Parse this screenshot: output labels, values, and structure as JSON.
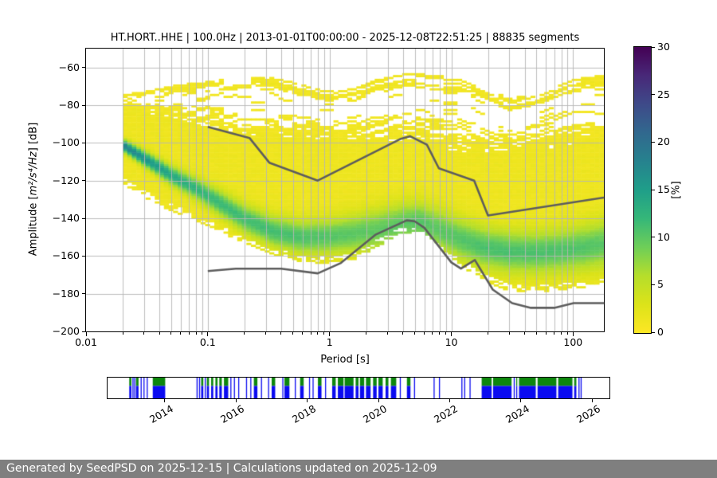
{
  "title": "HT.HORT..HHE | 100.0Hz | 2013-01-01T00:00:00 - 2025-12-08T22:51:25 | 88835 segments",
  "footer": {
    "text": "Generated by SeedPSD on 2025-12-15 | Calculations updated on 2025-12-09"
  },
  "main_plot": {
    "xlabel": "Period [s]",
    "ylabel_prefix": "Amplitude [",
    "ylabel_math": "m²/s⁴/Hz",
    "ylabel_suffix": "] [dB]"
  },
  "colorbar": {
    "label": "[%]",
    "ticks": [
      0,
      5,
      10,
      15,
      20,
      25,
      30
    ],
    "max": 30
  },
  "colors": {
    "grid": "#b5b5b5",
    "noise_model_line": "#5d5d5d",
    "footer_bg": "#7f7f7f",
    "timeline_green": "#0d870d",
    "timeline_blue": "#0b0bf0",
    "viridis_stops": [
      "#440154",
      "#482878",
      "#3e4a89",
      "#31688e",
      "#26828e",
      "#1f9e89",
      "#35b779",
      "#6ece58",
      "#b5de2b",
      "#dce319",
      "#fde725"
    ]
  },
  "chart_data": {
    "type": "heatmap",
    "title": "HT.HORT..HHE | 100.0Hz | 2013-01-01T00:00:00 - 2025-12-08T22:51:25 | 88835 segments",
    "xlabel": "Period [s]",
    "ylabel": "Amplitude [m²/s⁴/Hz] [dB]",
    "xscale": "log",
    "xlim": [
      0.01,
      179
    ],
    "ylim": [
      -200,
      -50
    ],
    "grid": true,
    "xticks": [
      [
        0.01,
        "0.01"
      ],
      [
        0.1,
        "0.1"
      ],
      [
        1,
        "1"
      ],
      [
        10,
        "10"
      ],
      [
        100,
        "100"
      ]
    ],
    "yticks": [
      -60,
      -80,
      -100,
      -120,
      -140,
      -160,
      -180,
      -200
    ],
    "colorbar": {
      "label": "[%]",
      "min": 0,
      "max": 30,
      "ticks": [
        0,
        5,
        10,
        15,
        20,
        25,
        30
      ],
      "colormap": "viridis reversed (0%=yellow, 30%=dark purple)"
    },
    "ppsd": {
      "comment": "PPSD 2D histogram summary: per period (s), mode of distribution (dB), gaussian spread (dB), peak probability (%), top of solid body (dB), bottom edge (dB), top of sparse spike streaks (dB). Period bins 1/8 octave, dB bins 1 dB.",
      "periods": [
        0.02,
        0.03,
        0.05,
        0.08,
        0.12,
        0.2,
        0.35,
        0.6,
        1.0,
        1.6,
        2.5,
        4.0,
        5.5,
        8.0,
        12,
        18,
        30,
        50,
        80,
        120,
        179
      ],
      "mode_db": [
        -101,
        -108,
        -117,
        -124,
        -131,
        -140,
        -147,
        -150,
        -149.5,
        -148,
        -146,
        -142.5,
        -141.5,
        -146,
        -151,
        -155,
        -157.5,
        -158,
        -157,
        -155.5,
        -153.5
      ],
      "sigma_db": [
        2.2,
        2.8,
        3.4,
        4.0,
        4.6,
        5.2,
        5.6,
        6.0,
        6.4,
        7.0,
        7.6,
        7.6,
        7.2,
        7.6,
        7.6,
        7.6,
        7.6,
        7.6,
        7.8,
        8.2,
        8.6
      ],
      "peak_pct": [
        17,
        15,
        12.5,
        11,
        10.5,
        10,
        10,
        9.5,
        9,
        8.7,
        8.5,
        8.7,
        9,
        8.7,
        9,
        9.5,
        9.5,
        9.5,
        9.3,
        9,
        8.7
      ],
      "solid_top_db": [
        -77,
        -82,
        -86,
        -88.5,
        -91,
        -94,
        -95,
        -95.5,
        -96.5,
        -97.5,
        -98.5,
        -97.5,
        -96.8,
        -100,
        -104,
        -103.5,
        -103,
        -102,
        -100.5,
        -99,
        -97.5
      ],
      "bottom_db": [
        -120,
        -127,
        -134.5,
        -140,
        -145,
        -152,
        -158,
        -161.5,
        -162.5,
        -160,
        -153,
        -146.5,
        -145.5,
        -154,
        -163.5,
        -171,
        -177,
        -177.5,
        -176.5,
        -175.5,
        -172
      ],
      "streak_top_db": [
        -75,
        -73.5,
        -70.5,
        -69,
        -67.5,
        -65.5,
        -66.5,
        -70,
        -73.5,
        -71,
        -67,
        -64.5,
        -64,
        -65.5,
        -65,
        -71,
        -77.5,
        -74,
        -68.5,
        -65,
        -64
      ],
      "min_period": 0.02
    },
    "noise_models": {
      "nhnm": [
        [
          0.1,
          -91.5
        ],
        [
          0.22,
          -97.4
        ],
        [
          0.32,
          -110.5
        ],
        [
          0.8,
          -120.0
        ],
        [
          3.8,
          -98.0
        ],
        [
          4.6,
          -96.5
        ],
        [
          6.3,
          -101.0
        ],
        [
          7.9,
          -113.5
        ],
        [
          15.4,
          -120.0
        ],
        [
          20.0,
          -138.5
        ],
        [
          179,
          -129.0
        ]
      ],
      "nlnm": [
        [
          0.1,
          -168.0
        ],
        [
          0.17,
          -166.7
        ],
        [
          0.4,
          -166.7
        ],
        [
          0.8,
          -169.2
        ],
        [
          1.24,
          -163.7
        ],
        [
          2.4,
          -148.6
        ],
        [
          4.3,
          -141.1
        ],
        [
          5.0,
          -141.6
        ],
        [
          6.0,
          -145.0
        ],
        [
          10.0,
          -163.4
        ],
        [
          12.0,
          -166.7
        ],
        [
          15.6,
          -162.1
        ],
        [
          21.9,
          -177.8
        ],
        [
          31.6,
          -185.0
        ],
        [
          45.0,
          -187.5
        ],
        [
          70.0,
          -187.5
        ],
        [
          101.0,
          -185.0
        ],
        [
          179,
          -185.0
        ]
      ]
    },
    "timeline": {
      "axis_start": 2012.39,
      "axis_end": 2026.49,
      "ticks": [
        2014,
        2016,
        2018,
        2020,
        2022,
        2024,
        2026
      ],
      "green_band": "top 40% of bar",
      "blue_band": "bottom 60% of bar",
      "segments": [
        [
          2013.0,
          2013.06
        ],
        [
          2013.09,
          2013.11,
          "b"
        ],
        [
          2013.14,
          2013.16,
          "b"
        ],
        [
          2013.19,
          2013.26
        ],
        [
          2013.32,
          2013.34,
          "b"
        ],
        [
          2013.4,
          2013.42,
          "b"
        ],
        [
          2013.49,
          2013.51,
          "b"
        ],
        [
          2013.66,
          2014.01
        ],
        [
          2014.89,
          2014.92,
          "b"
        ],
        [
          2014.96,
          2014.98,
          "b"
        ],
        [
          2015.02,
          2015.08
        ],
        [
          2015.12,
          2015.14,
          "b"
        ],
        [
          2015.18,
          2015.24
        ],
        [
          2015.3,
          2015.36
        ],
        [
          2015.42,
          2015.48
        ],
        [
          2015.53,
          2015.6
        ],
        [
          2015.66,
          2015.78
        ],
        [
          2015.84,
          2015.86,
          "b"
        ],
        [
          2015.94,
          2015.96,
          "b"
        ],
        [
          2016.06,
          2016.08,
          "b"
        ],
        [
          2016.28,
          2016.3,
          "b"
        ],
        [
          2016.4,
          2016.42,
          "b"
        ],
        [
          2016.5,
          2016.6
        ],
        [
          2016.7,
          2016.72,
          "b"
        ],
        [
          2016.9,
          2016.92,
          "b"
        ],
        [
          2017.0,
          2017.1
        ],
        [
          2017.3,
          2017.32,
          "b"
        ],
        [
          2017.36,
          2017.5
        ],
        [
          2017.65,
          2017.67,
          "b"
        ],
        [
          2017.8,
          2017.9
        ],
        [
          2018.05,
          2018.07,
          "b"
        ],
        [
          2018.15,
          2018.17,
          "b"
        ],
        [
          2018.3,
          2018.4
        ],
        [
          2018.5,
          2018.52,
          "b"
        ],
        [
          2018.7,
          2018.8
        ],
        [
          2018.86,
          2019.02
        ],
        [
          2019.05,
          2019.3
        ],
        [
          2019.36,
          2019.44
        ],
        [
          2019.48,
          2019.6
        ],
        [
          2019.65,
          2019.78
        ],
        [
          2019.85,
          2019.95
        ],
        [
          2020.0,
          2020.12
        ],
        [
          2020.2,
          2020.28
        ],
        [
          2020.35,
          2020.5
        ],
        [
          2020.6,
          2020.62,
          "b"
        ],
        [
          2020.8,
          2020.9
        ],
        [
          2021.0,
          2021.02,
          "b"
        ],
        [
          2021.55,
          2021.57,
          "b"
        ],
        [
          2021.7,
          2021.72,
          "b"
        ],
        [
          2022.33,
          2022.35,
          "b"
        ],
        [
          2022.41,
          2022.43,
          "b"
        ],
        [
          2022.56,
          2022.58,
          "b"
        ],
        [
          2022.9,
          2023.18
        ],
        [
          2023.22,
          2023.74
        ],
        [
          2023.8,
          2023.82,
          "b"
        ],
        [
          2023.87,
          2023.89
        ],
        [
          2023.95,
          2024.42
        ],
        [
          2024.47,
          2025.0
        ],
        [
          2025.05,
          2025.45
        ],
        [
          2025.5,
          2025.56
        ],
        [
          2025.62,
          2025.64,
          "b"
        ],
        [
          2025.68,
          2025.7,
          "b"
        ]
      ]
    }
  }
}
